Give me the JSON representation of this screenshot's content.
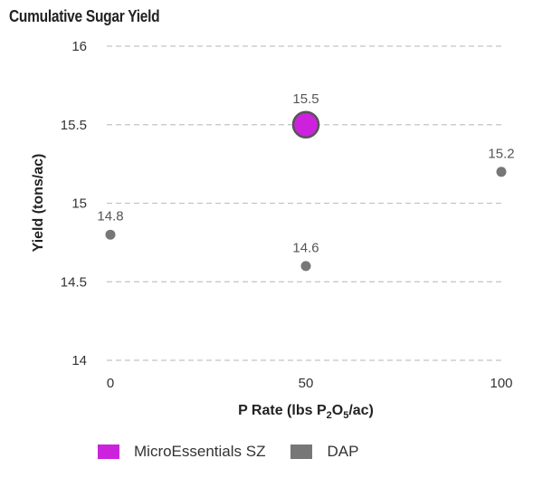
{
  "chart_data": {
    "type": "scatter",
    "title": "Cumulative Sugar Yield",
    "xlabel": "P Rate (lbs P2O5/ac)",
    "ylabel": "Yield (tons/ac)",
    "xlim": [
      0,
      100
    ],
    "ylim": [
      14,
      16
    ],
    "x_ticks": [
      "0",
      "50",
      "100"
    ],
    "y_ticks": [
      "14",
      "14.5",
      "15",
      "15.5",
      "16"
    ],
    "grid": true,
    "legend_position": "bottom",
    "series": [
      {
        "name": "MicroEssentials SZ",
        "color": "#cc22dd",
        "points": [
          {
            "x": 50,
            "y": 15.5,
            "label": "15.5"
          }
        ]
      },
      {
        "name": "DAP",
        "color": "#777777",
        "points": [
          {
            "x": 0,
            "y": 14.8,
            "label": "14.8"
          },
          {
            "x": 50,
            "y": 14.6,
            "label": "14.6"
          },
          {
            "x": 100,
            "y": 15.2,
            "label": "15.2"
          }
        ]
      }
    ]
  }
}
